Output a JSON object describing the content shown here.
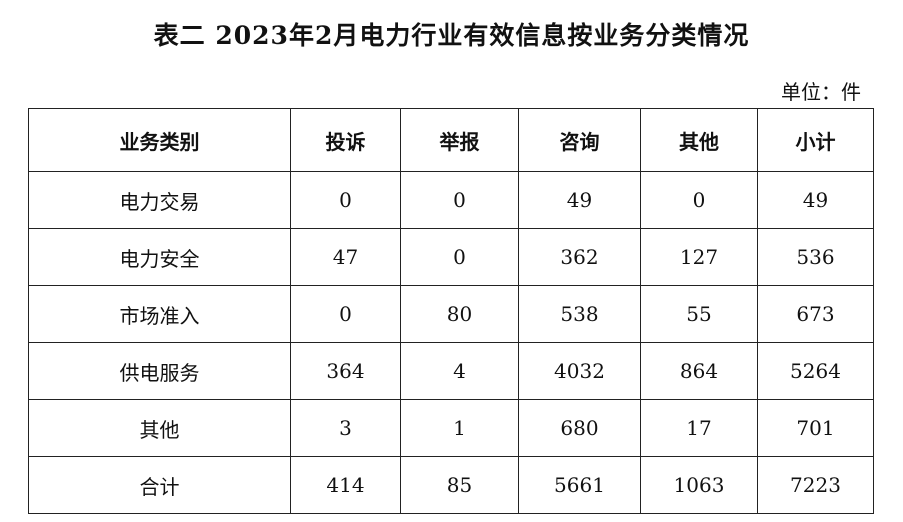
{
  "title": "表二 2023年2月电力行业有效信息按业务分类情况",
  "unit": "单位：件",
  "table": {
    "headers": [
      "业务类别",
      "投诉",
      "举报",
      "咨询",
      "其他",
      "小计"
    ],
    "rows": [
      [
        "电力交易",
        "0",
        "0",
        "49",
        "0",
        "49"
      ],
      [
        "电力安全",
        "47",
        "0",
        "362",
        "127",
        "536"
      ],
      [
        "市场准入",
        "0",
        "80",
        "538",
        "55",
        "673"
      ],
      [
        "供电服务",
        "364",
        "4",
        "4032",
        "864",
        "5264"
      ],
      [
        "其他",
        "3",
        "1",
        "680",
        "17",
        "701"
      ],
      [
        "合计",
        "414",
        "85",
        "5661",
        "1063",
        "7223"
      ]
    ]
  }
}
